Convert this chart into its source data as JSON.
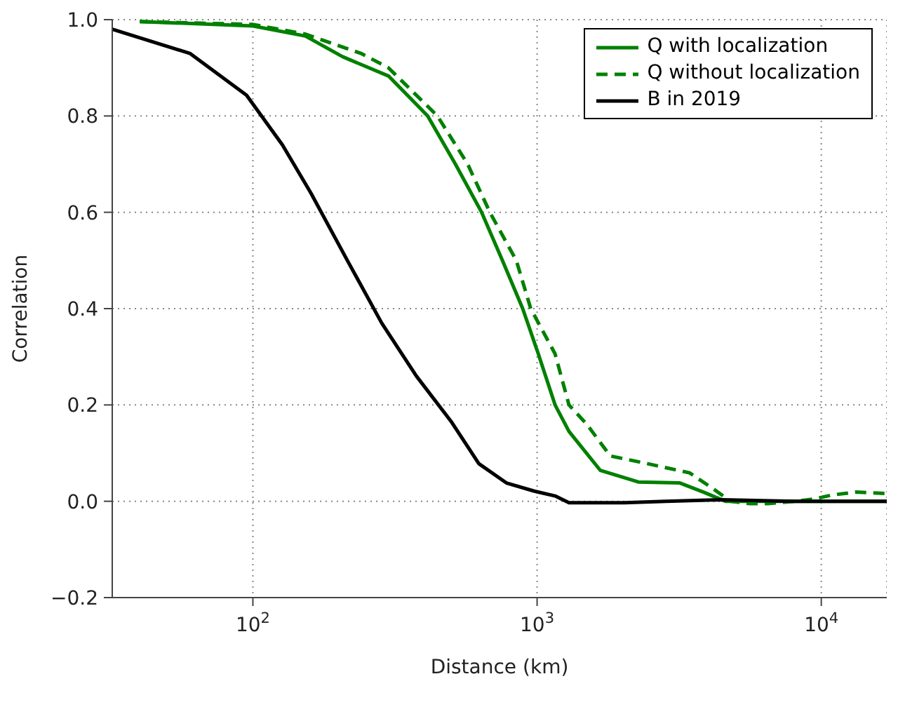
{
  "chart_data": {
    "type": "line",
    "xlabel": "Distance (km)",
    "ylabel": "Correlation",
    "log": "x",
    "grid": true,
    "legend": "top right",
    "marker": "none",
    "xlim": [
      32,
      17000
    ],
    "xticks": [
      {
        "value": 100,
        "label": "10$^{2}$"
      },
      {
        "value": 1000,
        "label": "10$^{3}$"
      },
      {
        "value": 10000,
        "label": "10$^{4}$"
      }
    ],
    "ylim": [
      -0.2,
      1.0
    ],
    "yticks": [
      {
        "value": -0.2,
        "label": "−0.2"
      },
      {
        "value": 0,
        "label": "0.0"
      },
      0.2,
      0.4,
      0.6,
      0.8,
      {
        "value": 1,
        "label": "1.0"
      }
    ],
    "series": [
      {
        "name": "Q with localization",
        "color": "#008000",
        "line_style": "solid",
        "x": [
          40,
          100,
          153,
          207,
          300,
          412,
          516,
          638,
          755,
          890,
          1010,
          1157,
          1295,
          1670,
          2270,
          3180,
          3850,
          4600,
          6000,
          10000,
          17000
        ],
        "values": [
          0.996,
          0.987,
          0.966,
          0.923,
          0.883,
          0.8,
          0.7,
          0.6,
          0.5,
          0.4,
          0.306,
          0.2,
          0.145,
          0.064,
          0.04,
          0.038,
          0.019,
          0,
          0,
          0,
          0
        ]
      },
      {
        "name": "Q without localization",
        "color": "#008000",
        "line_style": "dashed",
        "x": [
          40,
          100,
          153,
          240,
          300,
          446,
          570,
          682,
          845,
          950,
          1157,
          1295,
          1495,
          1810,
          2450,
          3440,
          4140,
          4800,
          5600,
          6500,
          8100,
          9500,
          10900,
          13200,
          17000
        ],
        "values": [
          0.996,
          0.99,
          0.97,
          0.93,
          0.9,
          0.8,
          0.7,
          0.6,
          0.5,
          0.4,
          0.306,
          0.2,
          0.16,
          0.094,
          0.078,
          0.059,
          0.027,
          0,
          -0.005,
          -0.005,
          0,
          0.005,
          0.013,
          0.019,
          0.016
        ]
      },
      {
        "name": "B in 2019",
        "color": "#000000",
        "line_style": "solid",
        "x": [
          32,
          60,
          95,
          127,
          160,
          215,
          284,
          376,
          498,
          624,
          780,
          978,
          1157,
          1295,
          2030,
          2840,
          4450,
          8000,
          17000
        ],
        "values": [
          0.98,
          0.93,
          0.843,
          0.74,
          0.64,
          0.5,
          0.37,
          0.26,
          0.166,
          0.078,
          0.038,
          0.021,
          0.011,
          -0.003,
          -0.003,
          0,
          0.003,
          0,
          0
        ]
      }
    ]
  }
}
